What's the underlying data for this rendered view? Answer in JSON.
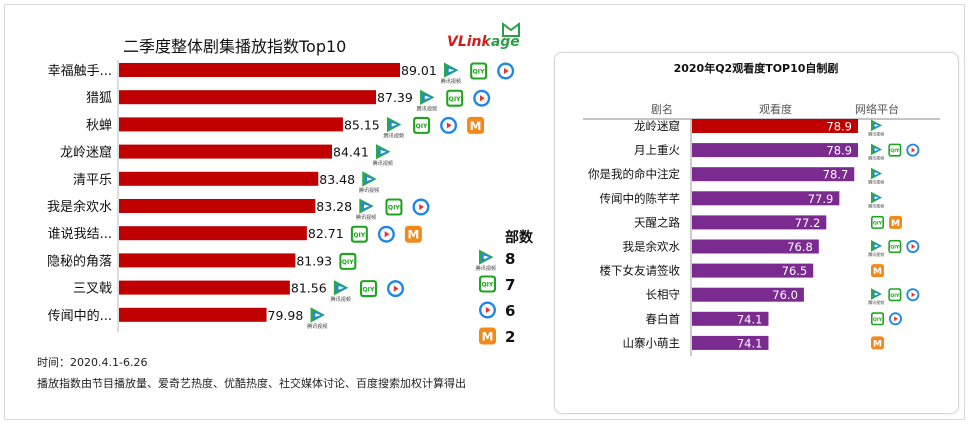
{
  "left_chart": {
    "title": "二季度整体剧集播放指数Top10",
    "brand": "VLinkage",
    "note_time": "时间：2020.4.1-6.26",
    "note_method": "播放指数由节目播放量、爱奇艺热度、优酷热度、社交媒体讨论、百度搜索加权计算得出",
    "legend_title": "部数"
  },
  "right_chart": {
    "title": "2020年Q2观看度TOP10自制剧",
    "col_name": "剧名",
    "col_value": "观看度",
    "col_platform": "网络平台"
  },
  "platform_labels": {
    "tencent": "腾讯视频",
    "iqiyi": "iQIYI",
    "youku": "▶",
    "mgtv": "M"
  },
  "colors": {
    "red": "#c00000",
    "purple": "#7b2a90",
    "tencent_green": "#2ca84b",
    "iqiyi_green": "#1ea51e",
    "youku_blue": "#1e87e6",
    "mgtv_orange": "#f08a1c"
  },
  "chart_data": [
    {
      "type": "bar",
      "orientation": "horizontal",
      "title": "二季度整体剧集播放指数Top10",
      "categories": [
        "幸福触手...",
        "猎狐",
        "秋蝉",
        "龙岭迷窟",
        "清平乐",
        "我是余欢水",
        "谁说我结...",
        "隐秘的角落",
        "三叉戟",
        "传闻中的..."
      ],
      "values": [
        89.01,
        87.39,
        85.15,
        84.41,
        83.48,
        83.28,
        82.71,
        81.93,
        81.56,
        79.98
      ],
      "value_labels": [
        "89.01",
        "87.39",
        "85.15",
        "84.41",
        "83.48",
        "83.28",
        "82.71",
        "81.93",
        "81.56",
        "79.98"
      ],
      "platforms": [
        [
          "tencent",
          "iqiyi",
          "youku"
        ],
        [
          "tencent",
          "iqiyi",
          "youku"
        ],
        [
          "tencent",
          "iqiyi",
          "youku",
          "mgtv"
        ],
        [
          "tencent"
        ],
        [
          "tencent"
        ],
        [
          "tencent",
          "iqiyi",
          "youku"
        ],
        [
          "iqiyi",
          "youku",
          "mgtv"
        ],
        [
          "iqiyi"
        ],
        [
          "tencent",
          "iqiyi",
          "youku"
        ],
        [
          "tencent"
        ]
      ],
      "bar_color": "#c00000",
      "legend": [
        {
          "platform": "tencent",
          "count": "8"
        },
        {
          "platform": "iqiyi",
          "count": "7"
        },
        {
          "platform": "youku",
          "count": "6"
        },
        {
          "platform": "mgtv",
          "count": "2"
        }
      ]
    },
    {
      "type": "bar",
      "orientation": "horizontal",
      "title": "2020年Q2观看度TOP10自制剧",
      "categories": [
        "龙岭迷窟",
        "月上重火",
        "你是我的命中注定",
        "传闻中的陈芊芊",
        "天醒之路",
        "我是余欢水",
        "楼下女友请签收",
        "长相守",
        "春白首",
        "山寨小萌主"
      ],
      "values": [
        78.9,
        78.9,
        78.7,
        77.9,
        77.2,
        76.8,
        76.5,
        76.0,
        74.1,
        74.1
      ],
      "value_labels": [
        "78.9",
        "78.9",
        "78.7",
        "77.9",
        "77.2",
        "76.8",
        "76.5",
        "76.0",
        "74.1",
        "74.1"
      ],
      "bar_colors": [
        "#c00000",
        "#7b2a90",
        "#7b2a90",
        "#7b2a90",
        "#7b2a90",
        "#7b2a90",
        "#7b2a90",
        "#7b2a90",
        "#7b2a90",
        "#7b2a90"
      ],
      "platforms": [
        [
          "tencent"
        ],
        [
          "tencent",
          "iqiyi",
          "youku"
        ],
        [
          "tencent"
        ],
        [
          "tencent"
        ],
        [
          "iqiyi",
          "mgtv"
        ],
        [
          "tencent",
          "iqiyi",
          "youku"
        ],
        [
          "mgtv"
        ],
        [
          "tencent",
          "iqiyi",
          "youku"
        ],
        [
          "iqiyi",
          "youku"
        ],
        [
          "mgtv"
        ]
      ]
    }
  ]
}
